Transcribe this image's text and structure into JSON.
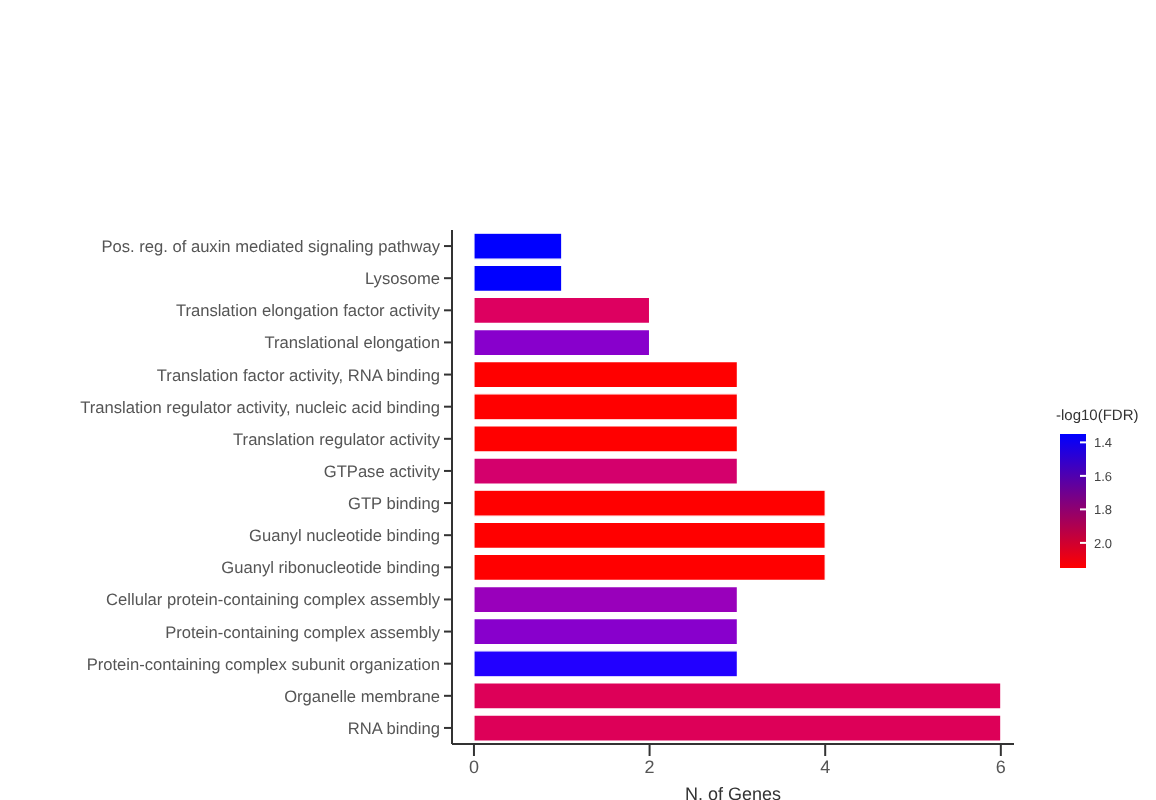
{
  "chart_data": {
    "type": "bar",
    "orientation": "horizontal",
    "xlabel": "N. of Genes",
    "clabel": "-log10(FDR)",
    "categories": [
      "Pos. reg. of auxin mediated signaling pathway",
      "Lysosome",
      "Translation elongation factor activity",
      "Translational elongation",
      "Translation factor activity, RNA binding",
      "Translation regulator activity, nucleic acid binding",
      "Translation regulator activity",
      "GTPase activity",
      "GTP binding",
      "Guanyl nucleotide binding",
      "Guanyl ribonucleotide binding",
      "Cellular protein-containing complex assembly",
      "Protein-containing complex assembly",
      "Protein-containing complex subunit organization",
      "Organelle membrane",
      "RNA binding"
    ],
    "values": [
      1,
      1,
      2,
      2,
      3,
      3,
      3,
      3,
      4,
      4,
      4,
      3,
      3,
      3,
      6,
      6
    ],
    "colors": [
      "#0000ff",
      "#0000ff",
      "#dd0060",
      "#8800cc",
      "#ff0000",
      "#ff0000",
      "#ff0000",
      "#d4006c",
      "#ff0000",
      "#ff0000",
      "#ff0000",
      "#9900bb",
      "#8800cc",
      "#2200ff",
      "#dd0058",
      "#dd0058"
    ],
    "xlim": [
      -0.25,
      6.15
    ],
    "xticks": [
      0,
      2,
      4,
      6
    ],
    "clim": [
      1.35,
      2.15
    ],
    "cticks": [
      1.4,
      1.6,
      1.8,
      {
        "value": 2,
        "label": "2.0"
      }
    ]
  }
}
